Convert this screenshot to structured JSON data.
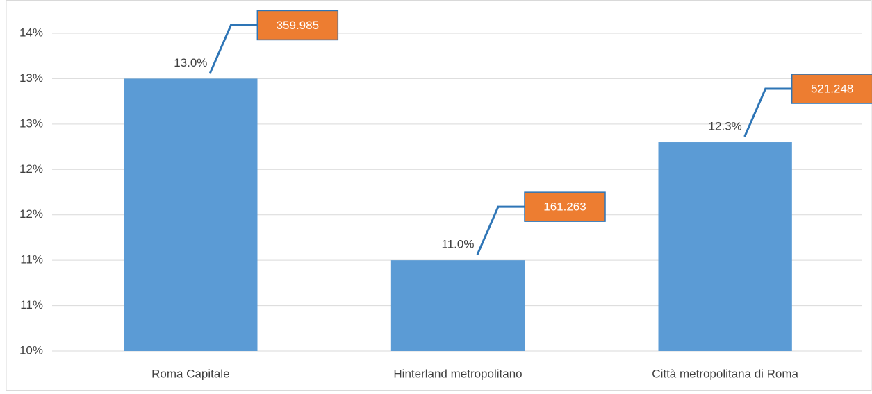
{
  "chart_data": {
    "type": "bar",
    "categories": [
      "Roma Capitale",
      "Hinterland metropolitano",
      "Città metropolitana di Roma"
    ],
    "values": [
      13.0,
      11.0,
      12.3
    ],
    "value_labels": [
      "13.0%",
      "11.0%",
      "12.3%"
    ],
    "counts": [
      359985,
      161263,
      521248
    ],
    "count_labels": [
      "359.985",
      "161.263",
      "521.248"
    ],
    "color": "#5b9bd5",
    "callout_color": "#ed7d31",
    "ylim": [
      10,
      13.5
    ],
    "yticks": [
      {
        "value": 10,
        "label": "10%"
      },
      {
        "value": 10.5,
        "label": "11%"
      },
      {
        "value": 11,
        "label": "11%"
      },
      {
        "value": 11.5,
        "label": "12%"
      },
      {
        "value": 12,
        "label": "12%"
      },
      {
        "value": 12.5,
        "label": "13%"
      },
      {
        "value": 13,
        "label": "13%"
      },
      {
        "value": 13.5,
        "label": "14%"
      }
    ],
    "grid": true
  }
}
